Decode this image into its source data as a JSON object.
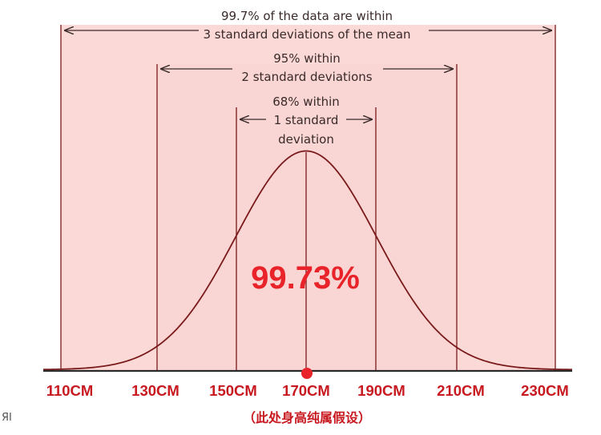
{
  "annotations": {
    "sd3_line1": "99.7% of the data are within",
    "sd3_line2": "3 standard deviations of the mean",
    "sd2_line1": "95% within",
    "sd2_line2": "2 standard deviations",
    "sd1_line1": "68% within",
    "sd1_line2": "1 standard",
    "sd1_line3": "deviation"
  },
  "center_percent": "99.73%",
  "x_ticks": [
    "110CM",
    "130CM",
    "150CM",
    "170CM",
    "190CM",
    "210CM",
    "230CM"
  ],
  "footnote": "（此处身高纯属假设）",
  "edge_glyph": "ЯІ",
  "colors": {
    "band": "#fbd9d7",
    "curve": "#7a1a1a",
    "axis": "#2a2a2a",
    "accent_red": "#e8232a",
    "tick_red": "#c7191f"
  }
}
